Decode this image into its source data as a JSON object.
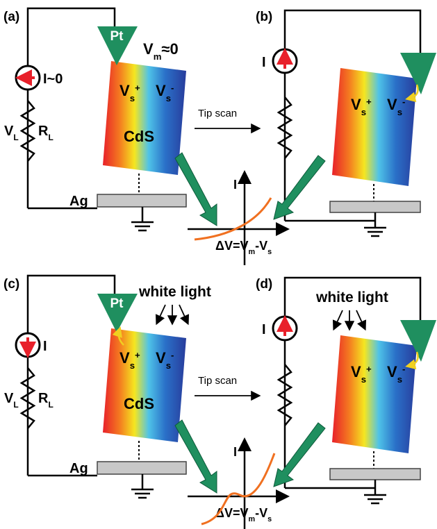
{
  "panels": [
    {
      "label": "(a)",
      "tip": "Pt",
      "tip_potential": {
        "symbol": "V",
        "subscript": "m",
        "suffix": "≈0"
      },
      "current": "I~0",
      "load_voltage": {
        "symbol": "V",
        "subscript": "L"
      },
      "load_resistor": {
        "symbol": "R",
        "subscript": "L"
      },
      "surface_potentials": [
        {
          "symbol": "V",
          "subscript": "s",
          "superscript": "+"
        },
        {
          "symbol": "V",
          "subscript": "s",
          "superscript": "-"
        }
      ],
      "sample": "CdS",
      "electrode": "Ag"
    },
    {
      "label": "(b)",
      "current": "I",
      "surface_potentials": [
        {
          "symbol": "V",
          "subscript": "s",
          "superscript": "+"
        },
        {
          "symbol": "V",
          "subscript": "s",
          "superscript": "-"
        }
      ]
    },
    {
      "label": "(c)",
      "tip": "Pt",
      "light": "white light",
      "current": "I",
      "load_voltage": {
        "symbol": "V",
        "subscript": "L"
      },
      "load_resistor": {
        "symbol": "R",
        "subscript": "L"
      },
      "surface_potentials": [
        {
          "symbol": "V",
          "subscript": "s",
          "superscript": "+"
        },
        {
          "symbol": "V",
          "subscript": "s",
          "superscript": "-"
        }
      ],
      "sample": "CdS",
      "electrode": "Ag"
    },
    {
      "label": "(d)",
      "light": "white light",
      "current": "I",
      "surface_potentials": [
        {
          "symbol": "V",
          "subscript": "s",
          "superscript": "+"
        },
        {
          "symbol": "V",
          "subscript": "s",
          "superscript": "-"
        }
      ]
    }
  ],
  "transitions": [
    {
      "action": "Tip scan",
      "plot_y_axis": "I",
      "plot_x_axis": {
        "prefix": "ΔV=V",
        "subscript_1": "m",
        "middle": "-V",
        "subscript_2": "s"
      }
    },
    {
      "action": "Tip scan",
      "plot_y_axis": "I",
      "plot_x_axis": {
        "prefix": "ΔV=V",
        "subscript_1": "m",
        "middle": "-V",
        "subscript_2": "s"
      }
    }
  ]
}
